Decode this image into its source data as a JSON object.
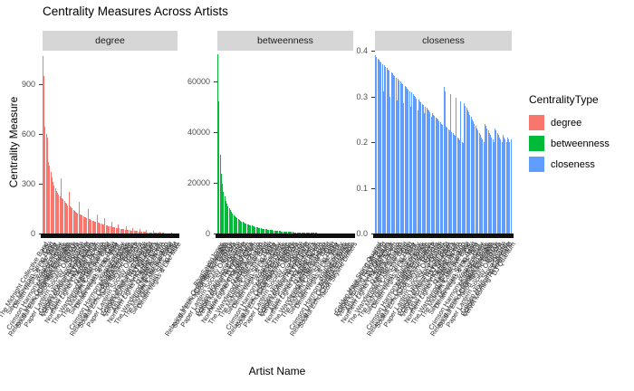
{
  "title": "Centrality Measures Across Artists",
  "axis": {
    "y_title": "Centrality Measure",
    "x_title": "Artist Name"
  },
  "legend": {
    "title": "CentralityType",
    "items": [
      {
        "label": "degree",
        "color": "#F8766D"
      },
      {
        "label": "betweenness",
        "color": "#00BA38"
      },
      {
        "label": "closeness",
        "color": "#619CFF"
      }
    ]
  },
  "chart_data": {
    "type": "bar",
    "title": "Centrality Measures Across Artists",
    "xlabel": "Artist Name",
    "ylabel": "Centrality Measure",
    "facet_layout": "three column facets sharing x, free y scales",
    "facets": [
      {
        "label": "degree",
        "color": "#F8766D",
        "ymax": 1100,
        "yticks": [
          {
            "v": 0,
            "label": "0"
          },
          {
            "v": 300,
            "label": "300"
          },
          {
            "v": 600,
            "label": "600"
          },
          {
            "v": 900,
            "label": "900"
          }
        ],
        "values": [
          1070,
          950,
          640,
          600,
          575,
          430,
          410,
          370,
          340,
          310,
          290,
          270,
          255,
          245,
          235,
          225,
          330,
          215,
          205,
          195,
          185,
          178,
          170,
          250,
          163,
          157,
          150,
          144,
          138,
          132,
          127,
          122,
          190,
          117,
          112,
          108,
          104,
          100,
          96,
          92,
          145,
          88,
          85,
          81,
          78,
          75,
          72,
          69,
          115,
          66,
          63,
          60,
          58,
          55,
          53,
          90,
          50,
          48,
          46,
          44,
          42,
          70,
          40,
          38,
          36,
          34,
          32,
          55,
          31,
          29,
          28,
          26,
          25,
          24,
          45,
          22,
          21,
          20,
          19,
          18,
          35,
          17,
          16,
          15,
          14,
          13,
          28,
          12,
          11,
          10,
          10,
          9,
          22,
          8,
          8,
          7,
          7,
          6,
          16,
          6,
          5,
          5,
          4,
          4,
          12,
          3,
          3,
          3,
          2,
          2,
          2,
          2,
          1,
          1,
          8,
          1,
          1,
          1,
          1,
          1
        ]
      },
      {
        "label": "betweenness",
        "color": "#00BA38",
        "ymax": 72000,
        "yticks": [
          {
            "v": 0,
            "label": "0"
          },
          {
            "v": 20000,
            "label": "20000"
          },
          {
            "v": 40000,
            "label": "40000"
          },
          {
            "v": 60000,
            "label": "60000"
          }
        ],
        "values": [
          70500,
          52000,
          31000,
          23500,
          19500,
          16500,
          14500,
          13000,
          11800,
          10800,
          9900,
          9100,
          8400,
          7800,
          7300,
          6800,
          6400,
          6000,
          5650,
          5350,
          5050,
          4800,
          4550,
          4300,
          4100,
          3900,
          3700,
          3520,
          3350,
          3200,
          3050,
          2900,
          2760,
          2630,
          2500,
          2380,
          2270,
          2160,
          2060,
          1960,
          1870,
          1780,
          1700,
          1620,
          1540,
          1470,
          1400,
          1340,
          1280,
          1220,
          1160,
          1110,
          1060,
          1010,
          960,
          915,
          875,
          835,
          795,
          760,
          725,
          690,
          660,
          630,
          600,
          570,
          545,
          520,
          495,
          470,
          450,
          430,
          410,
          390,
          370,
          350,
          335,
          320,
          305,
          290,
          275,
          260,
          248,
          236,
          224,
          212,
          200,
          190,
          180,
          170,
          160,
          150,
          142,
          134,
          126,
          118,
          110,
          102,
          95,
          88,
          81,
          74,
          68,
          62,
          56,
          50,
          45,
          40,
          35,
          30,
          26,
          22,
          18,
          15,
          12,
          9,
          7,
          5,
          3,
          2
        ]
      },
      {
        "label": "closeness",
        "color": "#619CFF",
        "ymax": 0.4,
        "yticks": [
          {
            "v": 0,
            "label": "0.0"
          },
          {
            "v": 0.1,
            "label": "0.1"
          },
          {
            "v": 0.2,
            "label": "0.2"
          },
          {
            "v": 0.3,
            "label": "0.3"
          },
          {
            "v": 0.4,
            "label": "0.4"
          }
        ],
        "values": [
          0.39,
          0.386,
          0.383,
          0.38,
          0.377,
          0.374,
          0.371,
          0.31,
          0.368,
          0.365,
          0.362,
          0.359,
          0.356,
          0.3,
          0.353,
          0.35,
          0.347,
          0.344,
          0.341,
          0.292,
          0.338,
          0.335,
          0.332,
          0.329,
          0.326,
          0.285,
          0.323,
          0.32,
          0.317,
          0.314,
          0.311,
          0.278,
          0.308,
          0.305,
          0.302,
          0.299,
          0.296,
          0.27,
          0.293,
          0.29,
          0.287,
          0.284,
          0.281,
          0.263,
          0.278,
          0.275,
          0.272,
          0.269,
          0.266,
          0.256,
          0.263,
          0.26,
          0.257,
          0.254,
          0.251,
          0.249,
          0.246,
          0.243,
          0.24,
          0.237,
          0.32,
          0.31,
          0.234,
          0.231,
          0.228,
          0.225,
          0.305,
          0.222,
          0.219,
          0.216,
          0.213,
          0.298,
          0.21,
          0.207,
          0.204,
          0.29,
          0.201,
          0.198,
          0.285,
          0.28,
          0.275,
          0.27,
          0.265,
          0.26,
          0.255,
          0.25,
          0.245,
          0.24,
          0.235,
          0.23,
          0.225,
          0.22,
          0.215,
          0.21,
          0.205,
          0.2,
          0.24,
          0.235,
          0.23,
          0.225,
          0.22,
          0.215,
          0.21,
          0.205,
          0.2,
          0.23,
          0.225,
          0.22,
          0.215,
          0.21,
          0.205,
          0.2,
          0.215,
          0.21,
          0.205,
          0.2,
          0.21,
          0.205,
          0.2,
          0.205
        ]
      }
    ],
    "x_labels_visible_fragments": [
      "Olly",
      "Dimitri Ve",
      "Prof.",
      "YoungEcsta",
      "BhatSavi",
      "Relaxing M",
      "Sou",
      "R",
      "St"
    ],
    "x_labels": [
      "The Midnight Collective Band",
      "Olly",
      "Silver Mountain String Band",
      "Dimitri Vegas & Like Mike",
      "Prof.",
      "YoungEcstasy",
      "Crimson Harmony Project Players",
      "BhatSavitriJones",
      "Relaxing Music Orchestra Ensemble",
      "Soulful Echo Chamber Ensemble",
      "Neon Skyline Drifters",
      "R3HAB",
      "Paper Lantern Society Orchestra",
      "Stormzy",
      "Golden Hour String Quartet",
      "Echoes of Autumn Collective",
      "Velvet Morning Revival Band",
      "DJ Quantum",
      "Atlas Frequency Orchestra",
      "Northern Lights Chamber Choir",
      "Static Bloom",
      "Marble Arch Trio",
      "The Wandering Minstrels Group",
      "Luna & The Satellites"
    ]
  }
}
